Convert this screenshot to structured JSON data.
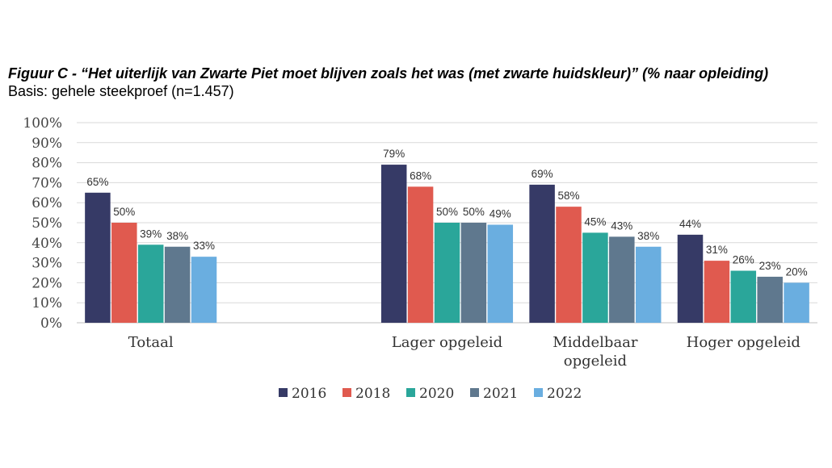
{
  "title": {
    "bold": "Figuur C - “Het uiterlijk van Zwarte Piet moet blijven zoals het was (met zwarte huidskleur)” (% naar opleiding)",
    "base": "Basis: gehele steekproef (n=1.457)"
  },
  "chart_data": {
    "type": "bar",
    "categories": [
      "Totaal",
      "",
      "Lager opgeleid",
      "Middelbaar opgeleid",
      "Hoger opgeleid"
    ],
    "series": [
      {
        "name": "2016",
        "color": "#363a66",
        "values": [
          65,
          null,
          79,
          69,
          44
        ]
      },
      {
        "name": "2018",
        "color": "#e05a4f",
        "values": [
          50,
          null,
          68,
          58,
          31
        ]
      },
      {
        "name": "2020",
        "color": "#2aa69a",
        "values": [
          39,
          null,
          50,
          45,
          26
        ]
      },
      {
        "name": "2021",
        "color": "#5f788e",
        "values": [
          38,
          null,
          50,
          43,
          23
        ]
      },
      {
        "name": "2022",
        "color": "#6aaee0",
        "values": [
          33,
          null,
          49,
          38,
          20
        ]
      }
    ],
    "data_labels": [
      [
        "65%",
        "50%",
        "39%",
        "38%",
        "33%"
      ],
      [],
      [
        "79%",
        "68%",
        "50%",
        "50%",
        "49%"
      ],
      [
        "69%",
        "58%",
        "45%",
        "43%",
        "38%"
      ],
      [
        "44%",
        "31%",
        "26%",
        "23%",
        "20%"
      ]
    ],
    "y_ticks": [
      "0%",
      "10%",
      "20%",
      "30%",
      "40%",
      "50%",
      "60%",
      "70%",
      "80%",
      "90%",
      "100%"
    ],
    "ylim": [
      0,
      100
    ],
    "grid": true,
    "legend_position": "bottom"
  }
}
